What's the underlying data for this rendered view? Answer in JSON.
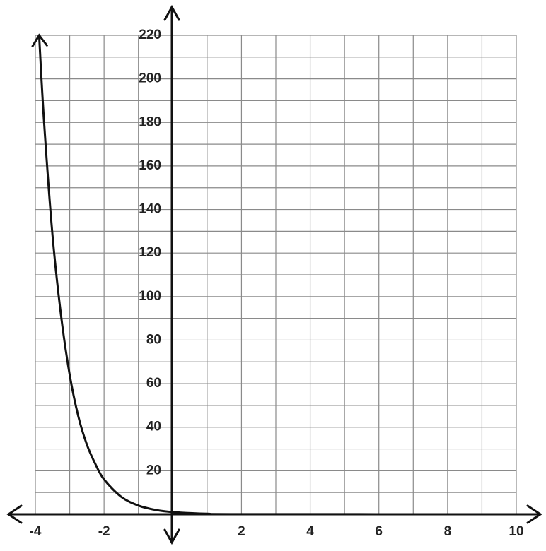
{
  "chart_data": {
    "type": "line",
    "x": [
      -3.89,
      -3.75,
      -3.5,
      -3.25,
      -3,
      -2.75,
      -2.5,
      -2.25,
      -2,
      -1.5,
      -1,
      -0.5,
      0,
      1,
      2,
      10
    ],
    "values": [
      220,
      181,
      128,
      91,
      64,
      45,
      32,
      23,
      16,
      8,
      4,
      2,
      1,
      0.25,
      0.06,
      0
    ],
    "color": "#111111",
    "xlim": [
      -4,
      10
    ],
    "ylim": [
      0,
      220
    ],
    "xticks": [
      -4,
      -2,
      2,
      4,
      6,
      8,
      10
    ],
    "yticks": [
      20,
      40,
      60,
      80,
      100,
      120,
      140,
      160,
      180,
      200,
      220
    ],
    "xgrid": [
      -4,
      -3,
      -2,
      -1,
      0,
      1,
      2,
      3,
      4,
      5,
      6,
      7,
      8,
      9,
      10
    ],
    "ygrid": [
      0,
      10,
      20,
      30,
      40,
      50,
      60,
      70,
      80,
      90,
      100,
      110,
      120,
      130,
      140,
      150,
      160,
      170,
      180,
      190,
      200,
      210,
      220
    ],
    "grid": true
  }
}
